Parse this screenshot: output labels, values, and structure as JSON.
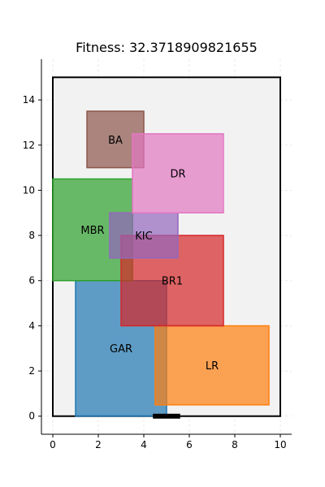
{
  "chart_data": {
    "type": "floor-plan",
    "title": "Fitness: 32.3718909821655",
    "xlim": [
      -0.5,
      10.5
    ],
    "ylim": [
      -0.8,
      15.8
    ],
    "xticks": [
      0,
      2,
      4,
      6,
      8,
      10
    ],
    "yticks": [
      0,
      2,
      4,
      6,
      8,
      10,
      12,
      14
    ],
    "grid": true,
    "boundary": {
      "x0": 0,
      "y0": 0,
      "x1": 10,
      "y1": 15,
      "fill": "#f2f2f2",
      "stroke": "#000000"
    },
    "door": {
      "x0": 4.4,
      "x1": 5.6,
      "y": 0,
      "color": "#000000"
    },
    "rooms": [
      {
        "label": "GAR",
        "x0": 1.0,
        "y0": 0.0,
        "x1": 5.0,
        "y1": 6.0,
        "color": "#1f77b4"
      },
      {
        "label": "LR",
        "x0": 4.5,
        "y0": 0.5,
        "x1": 9.5,
        "y1": 4.0,
        "color": "#ff7f0e"
      },
      {
        "label": "MBR",
        "x0": 0.0,
        "y0": 6.0,
        "x1": 3.5,
        "y1": 10.5,
        "color": "#2ca02c"
      },
      {
        "label": "BR1",
        "x0": 3.0,
        "y0": 4.0,
        "x1": 7.5,
        "y1": 8.0,
        "color": "#d62728"
      },
      {
        "label": "KIC",
        "x0": 2.5,
        "y0": 7.0,
        "x1": 5.5,
        "y1": 9.0,
        "color": "#9467bd"
      },
      {
        "label": "BA",
        "x0": 1.5,
        "y0": 11.0,
        "x1": 4.0,
        "y1": 13.5,
        "color": "#8c564b"
      },
      {
        "label": "DR",
        "x0": 3.5,
        "y0": 9.0,
        "x1": 7.5,
        "y1": 12.5,
        "color": "#e377c2"
      }
    ]
  }
}
